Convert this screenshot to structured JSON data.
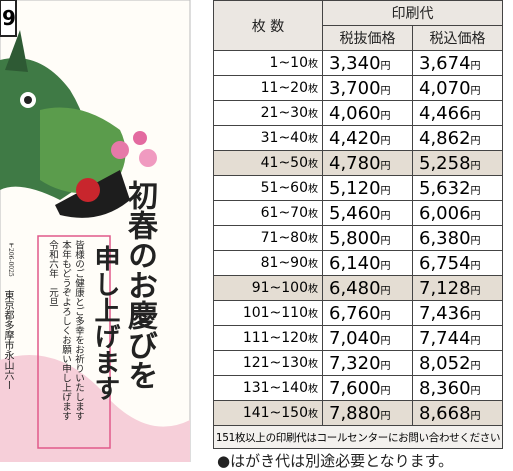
{
  "card": {
    "page_number": "9",
    "greeting_line1": "初春のお慶びを",
    "greeting_line2": "申し上げます",
    "message": [
      "皆様のご健康とご多幸をお祈りいたします",
      "本年もどうぞよろしくお願い申し上げます",
      "令和六年　元旦"
    ],
    "postal_code": "〒206-0025",
    "address": "東京都多摩市永山六ー"
  },
  "table": {
    "header_count": "枚 数",
    "header_price": "印刷代",
    "header_excl": "税抜価格",
    "header_incl": "税込価格",
    "count_unit": "枚",
    "price_unit": "円",
    "rows": [
      [
        "1~10",
        "3,340",
        "3,674"
      ],
      [
        "11~20",
        "3,700",
        "4,070"
      ],
      [
        "21~30",
        "4,060",
        "4,466"
      ],
      [
        "31~40",
        "4,420",
        "4,862"
      ],
      [
        "41~50",
        "4,780",
        "5,258"
      ],
      [
        "51~60",
        "5,120",
        "5,632"
      ],
      [
        "61~70",
        "5,460",
        "6,006"
      ],
      [
        "71~80",
        "5,800",
        "6,380"
      ],
      [
        "81~90",
        "6,140",
        "6,754"
      ],
      [
        "91~100",
        "6,480",
        "7,128"
      ],
      [
        "101~110",
        "6,760",
        "7,436"
      ],
      [
        "111~120",
        "7,040",
        "7,744"
      ],
      [
        "121~130",
        "7,320",
        "8,052"
      ],
      [
        "131~140",
        "7,600",
        "8,360"
      ],
      [
        "141~150",
        "7,880",
        "8,668"
      ]
    ],
    "note": "151枚以上の印刷代はコールセンターにお問い合わせください"
  },
  "footer": "●はがき代は別途必要となります。"
}
